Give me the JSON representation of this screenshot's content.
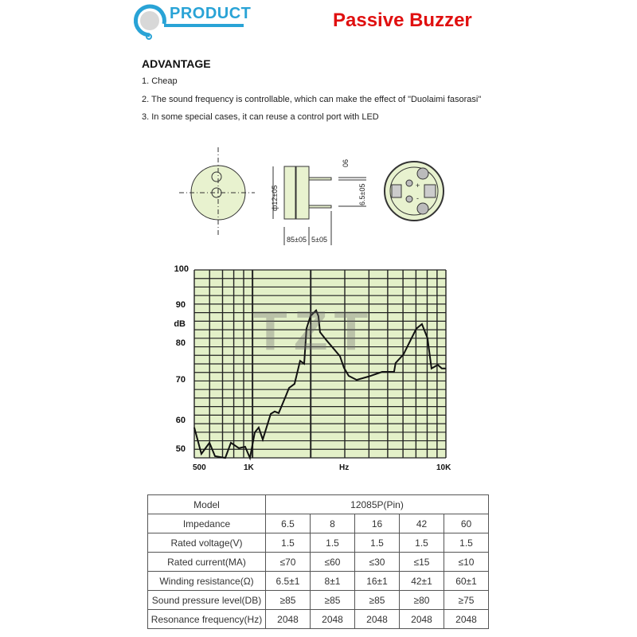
{
  "header": {
    "logo_text": "PRODUCT",
    "title": "Passive Buzzer",
    "brand_color": "#29a3d6",
    "title_color": "#e01010"
  },
  "advantage": {
    "heading": "ADVANTAGE",
    "items": [
      "1. Cheap",
      "2. The sound frequency is controllable, which can make the effect of \"Duolaimi fasorasi\"",
      "3. In some special cases, it can reuse a control port with LED"
    ]
  },
  "watermark": "TZT",
  "drawing": {
    "diameter": "ф12±05",
    "pin_thickness": "06",
    "pin_spacing": "6.5±05",
    "body_height": "85±05",
    "pin_length": "5±05",
    "plus": "+",
    "minus": "-",
    "fill_color": "#e8f2cf"
  },
  "chart_data": {
    "type": "line",
    "title": "",
    "xlabel": "Hz",
    "ylabel": "dB",
    "x_scale": "log",
    "xlim": [
      500,
      10000
    ],
    "ylim": [
      47,
      100
    ],
    "x_ticks": [
      "500",
      "1K",
      "Hz",
      "10K"
    ],
    "y_ticks": [
      "100",
      "90",
      "dB",
      "80",
      "70",
      "60",
      "50"
    ],
    "grid": true,
    "background": "#e3f0c8",
    "series": [
      {
        "x": [
          500,
          544,
          599,
          640,
          723,
          773,
          850,
          916,
          970,
          1028,
          1077,
          1130,
          1242,
          1302,
          1366,
          1472,
          1545,
          1650,
          1763,
          1849,
          1902,
          1994,
          2132,
          2193,
          2233,
          2410,
          2831,
          2971,
          3142,
          3456,
          3983,
          4681,
          5395,
          5495,
          6041,
          7031,
          7516,
          8035,
          8421,
          9079,
          9527,
          10000
        ],
        "y": [
          57.8,
          48.6,
          52.5,
          47.8,
          47.2,
          52.5,
          50.6,
          51.1,
          47.2,
          56.1,
          57.8,
          53.6,
          61.8,
          62.4,
          62.0,
          65.7,
          68.2,
          69.2,
          75.4,
          74.6,
          84.0,
          87.3,
          88.8,
          87.3,
          83.1,
          81.0,
          76.7,
          73.5,
          71.3,
          70.2,
          71.1,
          72.4,
          72.4,
          74.8,
          77.2,
          84.0,
          85.2,
          81.5,
          73.3,
          74.3,
          73.3,
          73.3
        ]
      }
    ]
  },
  "table": {
    "header": [
      "Model",
      "12085P(Pin)"
    ],
    "rows": [
      {
        "label": "Impedance",
        "values": [
          "6.5",
          "8",
          "16",
          "42",
          "60"
        ]
      },
      {
        "label": "Rated voltage(V)",
        "values": [
          "1.5",
          "1.5",
          "1.5",
          "1.5",
          "1.5"
        ]
      },
      {
        "label": "Rated current(MA)",
        "values": [
          "≤70",
          "≤60",
          "≤30",
          "≤15",
          "≤10"
        ]
      },
      {
        "label": "Winding resistance(Ω)",
        "values": [
          "6.5±1",
          "8±1",
          "16±1",
          "42±1",
          "60±1"
        ]
      },
      {
        "label": "Sound pressure level(DB)",
        "values": [
          "≥85",
          "≥85",
          "≥85",
          "≥80",
          "≥75"
        ]
      },
      {
        "label": "Resonance frequency(Hz)",
        "values": [
          "2048",
          "2048",
          "2048",
          "2048",
          "2048"
        ]
      }
    ]
  }
}
